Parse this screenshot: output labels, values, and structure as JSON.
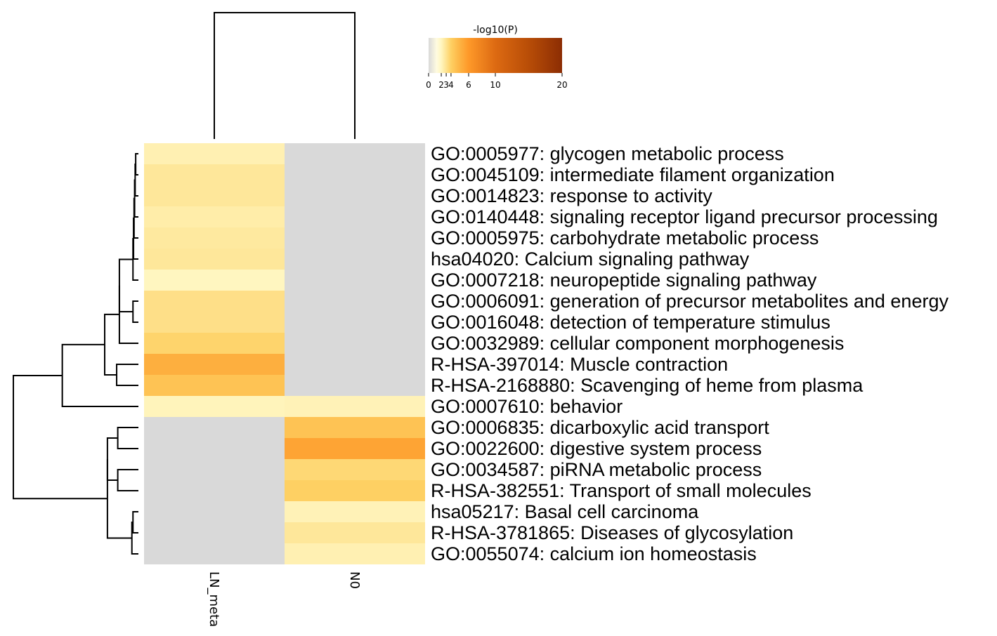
{
  "chart_data": {
    "type": "heatmap",
    "title": "",
    "columns": [
      "LN_meta",
      "N0"
    ],
    "rows": [
      "GO:0005977: glycogen metabolic process",
      "GO:0045109: intermediate filament organization",
      "GO:0014823: response to activity",
      "GO:0140448: signaling receptor ligand precursor processing",
      "GO:0005975: carbohydrate metabolic process",
      "hsa04020: Calcium signaling pathway",
      "GO:0007218: neuropeptide signaling pathway",
      "GO:0006091: generation of precursor metabolites and energy",
      "GO:0016048: detection of temperature stimulus",
      "GO:0032989: cellular component morphogenesis",
      "R-HSA-397014: Muscle contraction",
      "R-HSA-2168880: Scavenging of heme from plasma",
      "GO:0007610: behavior",
      "GO:0006835: dicarboxylic acid transport",
      "GO:0022600: digestive system process",
      "GO:0034587: piRNA metabolic process",
      "R-HSA-382551: Transport of small molecules",
      "hsa05217: Basal cell carcinoma",
      "R-HSA-3781865: Diseases of glycosylation",
      "GO:0055074: calcium ion homeostasis"
    ],
    "values": [
      [
        2.3,
        0
      ],
      [
        2.8,
        0
      ],
      [
        2.8,
        0
      ],
      [
        2.5,
        0
      ],
      [
        2.7,
        0
      ],
      [
        2.8,
        0
      ],
      [
        2.0,
        0
      ],
      [
        3.2,
        0
      ],
      [
        3.2,
        0
      ],
      [
        3.8,
        0
      ],
      [
        5.2,
        0
      ],
      [
        4.5,
        0
      ],
      [
        2.1,
        2.2
      ],
      [
        0,
        4.5
      ],
      [
        0,
        5.6
      ],
      [
        0,
        3.6
      ],
      [
        0,
        4.0
      ],
      [
        0,
        2.2
      ],
      [
        0,
        2.8
      ],
      [
        0,
        2.3
      ]
    ],
    "colorbar": {
      "title": "-log10(P)",
      "ticks": [
        0,
        2,
        3,
        4,
        6,
        10,
        20
      ],
      "range": [
        0,
        20
      ],
      "colors": [
        "#d9d9d9",
        "#fff7bc",
        "#fee391",
        "#fec44f",
        "#fe9929",
        "#ec7014",
        "#cc4c02",
        "#993404",
        "#8c2d04"
      ]
    },
    "row_dendrogram": {
      "merges": [
        [
          0,
          1
        ],
        [
          20,
          2
        ],
        [
          21,
          3
        ],
        [
          22,
          4
        ],
        [
          23,
          5
        ],
        [
          24,
          6
        ],
        [
          7,
          8
        ],
        [
          25,
          26
        ],
        [
          27,
          9
        ],
        [
          10,
          11
        ],
        [
          28,
          29
        ],
        [
          30,
          12
        ],
        [
          13,
          14
        ],
        [
          15,
          16
        ],
        [
          32,
          33
        ],
        [
          17,
          18
        ],
        [
          35,
          19
        ],
        [
          34,
          36
        ],
        [
          31,
          37
        ]
      ],
      "heights": [
        0.05,
        0.06,
        0.07,
        0.08,
        0.09,
        0.1,
        0.1,
        0.35,
        0.35,
        0.4,
        0.62,
        1.4,
        0.38,
        0.38,
        0.57,
        0.1,
        0.12,
        0.57,
        2.3
      ]
    },
    "column_dendrogram": {
      "merges": [
        [
          0,
          1
        ]
      ],
      "heights": [
        1.0
      ]
    }
  }
}
